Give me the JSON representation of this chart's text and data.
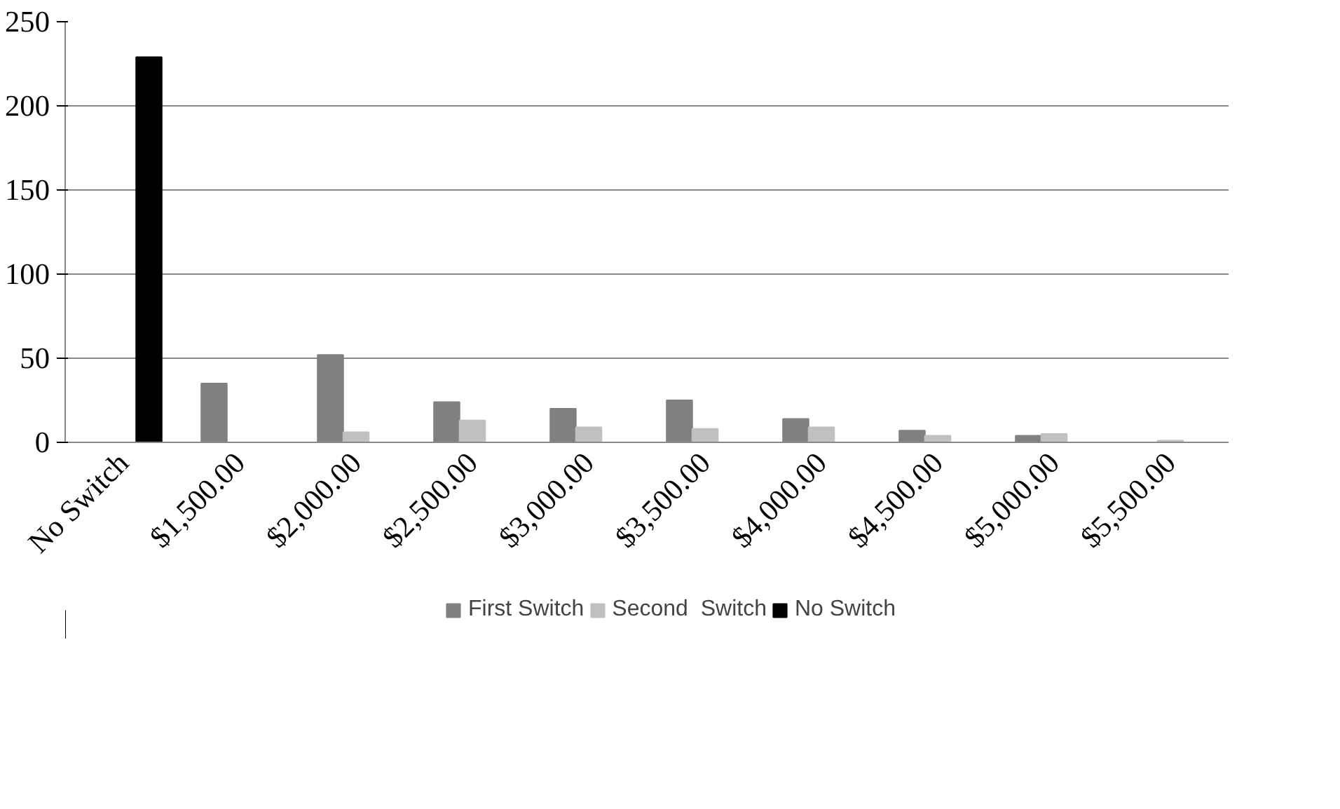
{
  "chart_data": {
    "type": "bar",
    "categories": [
      "No Switch",
      "$1,500.00",
      "$2,000.00",
      "$2,500.00",
      "$3,000.00",
      "$3,500.00",
      "$4,000.00",
      "$4,500.00",
      "$5,000.00",
      "$5,500.00"
    ],
    "series": [
      {
        "name": "First Switch",
        "color": "#808080",
        "values": [
          null,
          35,
          52,
          24,
          20,
          25,
          14,
          7,
          4,
          0
        ]
      },
      {
        "name": "Second  Switch",
        "color": "#c0c0c0",
        "values": [
          null,
          null,
          6,
          13,
          9,
          8,
          9,
          4,
          5,
          1
        ]
      },
      {
        "name": "No Switch",
        "color": "#000000",
        "values": [
          229,
          null,
          null,
          null,
          null,
          null,
          null,
          null,
          null,
          null
        ]
      }
    ],
    "ylim": [
      0,
      250
    ],
    "yticks": [
      0,
      50,
      100,
      150,
      200,
      250
    ],
    "grid": "y",
    "legend": "bottom"
  }
}
